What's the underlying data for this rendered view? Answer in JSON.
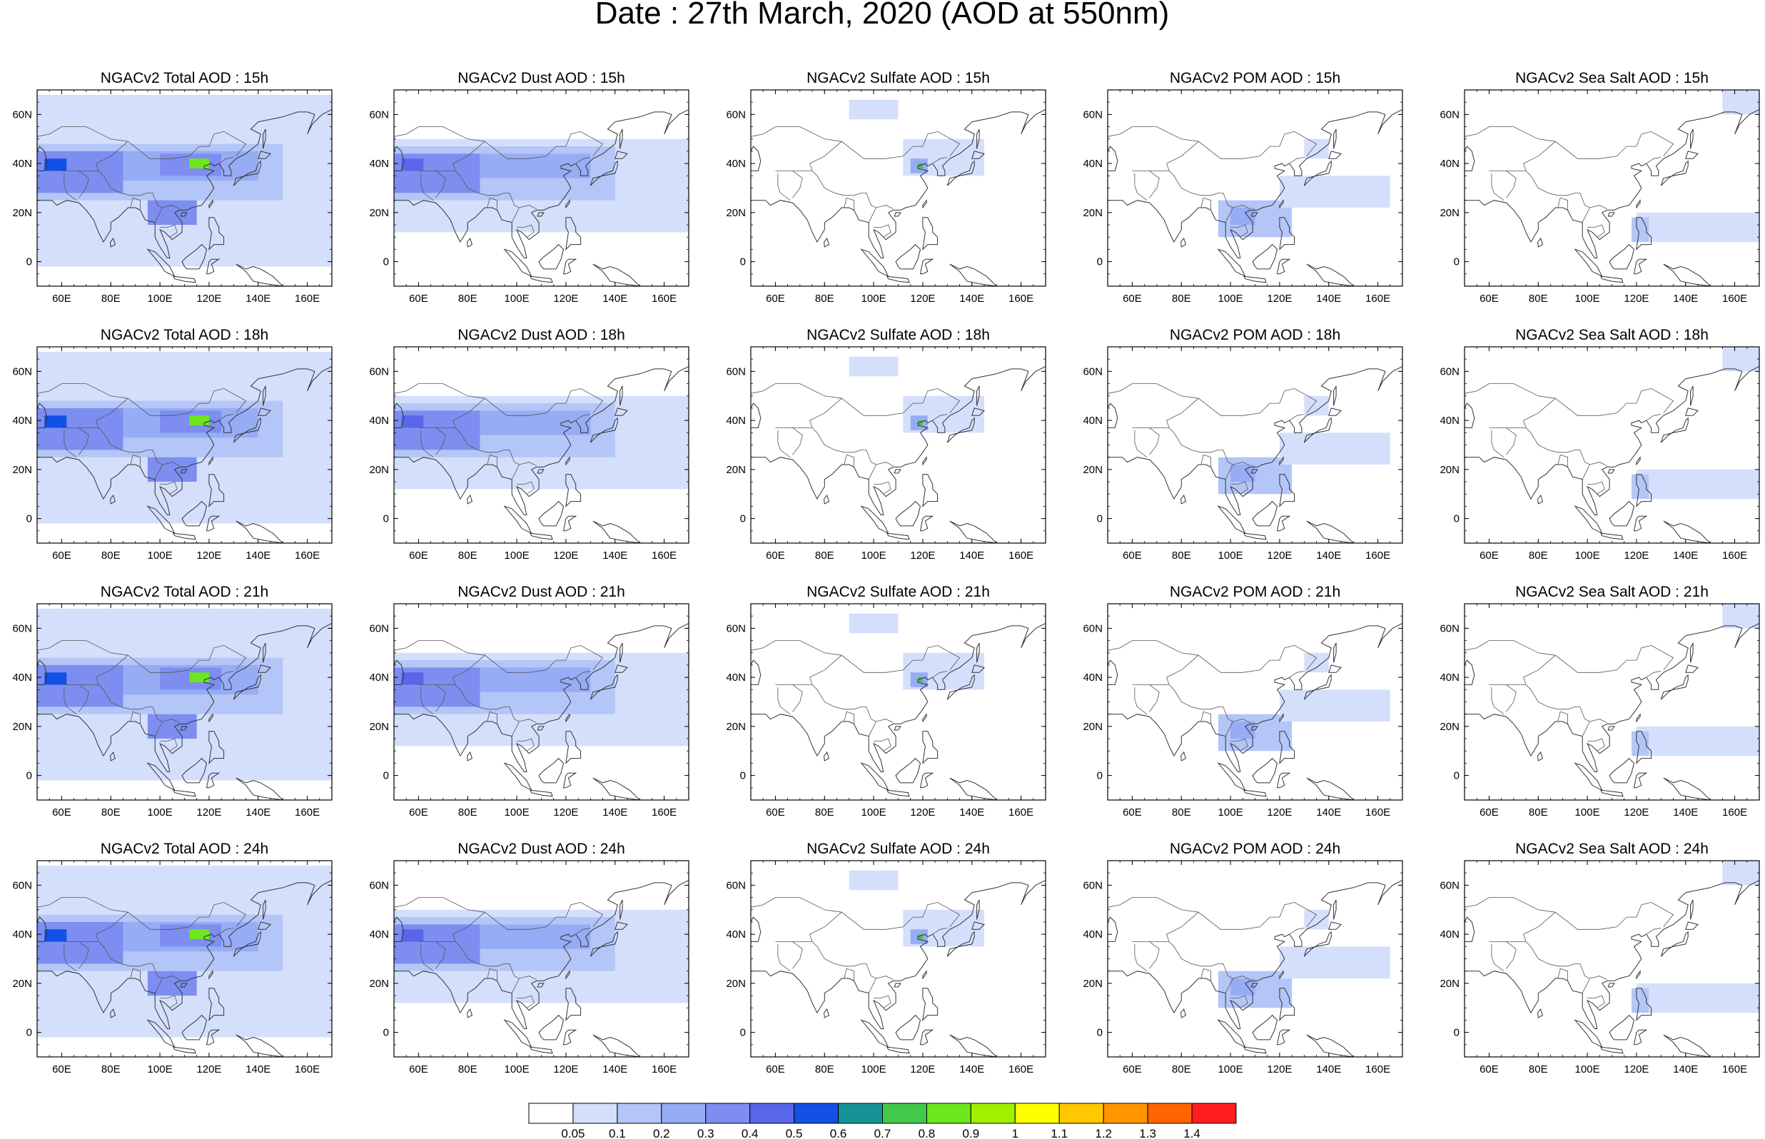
{
  "figure_title": "Date : 27th March, 2020 (AOD at 550nm)",
  "lat_labels": [
    "60N",
    "40N",
    "20N",
    "0"
  ],
  "lon_labels": [
    "60E",
    "80E",
    "100E",
    "120E",
    "140E",
    "160E"
  ],
  "map_extent": {
    "lon": [
      50,
      170
    ],
    "lat": [
      -10,
      70
    ]
  },
  "panels": [
    {
      "title": "NGACv2 Total AOD : 15h",
      "species": "total",
      "hour": 15
    },
    {
      "title": "NGACv2 Dust AOD : 15h",
      "species": "dust",
      "hour": 15
    },
    {
      "title": "NGACv2 Sulfate AOD : 15h",
      "species": "sulfate",
      "hour": 15
    },
    {
      "title": "NGACv2 POM AOD : 15h",
      "species": "pom",
      "hour": 15
    },
    {
      "title": "NGACv2 Sea Salt AOD : 15h",
      "species": "seasalt",
      "hour": 15
    },
    {
      "title": "NGACv2 Total AOD : 18h",
      "species": "total",
      "hour": 18
    },
    {
      "title": "NGACv2 Dust AOD : 18h",
      "species": "dust",
      "hour": 18
    },
    {
      "title": "NGACv2 Sulfate AOD : 18h",
      "species": "sulfate",
      "hour": 18
    },
    {
      "title": "NGACv2 POM AOD : 18h",
      "species": "pom",
      "hour": 18
    },
    {
      "title": "NGACv2 Sea Salt AOD : 18h",
      "species": "seasalt",
      "hour": 18
    },
    {
      "title": "NGACv2 Total AOD : 21h",
      "species": "total",
      "hour": 21
    },
    {
      "title": "NGACv2 Dust AOD : 21h",
      "species": "dust",
      "hour": 21
    },
    {
      "title": "NGACv2 Sulfate AOD : 21h",
      "species": "sulfate",
      "hour": 21
    },
    {
      "title": "NGACv2 POM AOD : 21h",
      "species": "pom",
      "hour": 21
    },
    {
      "title": "NGACv2 Sea Salt AOD : 21h",
      "species": "seasalt",
      "hour": 21
    },
    {
      "title": "NGACv2 Total AOD : 24h",
      "species": "total",
      "hour": 24
    },
    {
      "title": "NGACv2 Dust AOD : 24h",
      "species": "dust",
      "hour": 24
    },
    {
      "title": "NGACv2 Sulfate AOD : 24h",
      "species": "sulfate",
      "hour": 24
    },
    {
      "title": "NGACv2 POM AOD : 24h",
      "species": "pom",
      "hour": 24
    },
    {
      "title": "NGACv2 Sea Salt  AOD : 24h",
      "species": "seasalt",
      "hour": 24
    }
  ],
  "colorbar": {
    "labels": [
      "0.05",
      "0.1",
      "0.2",
      "0.3",
      "0.4",
      "0.5",
      "0.6",
      "0.7",
      "0.8",
      "0.9",
      "1",
      "1.1",
      "1.2",
      "1.3",
      "1.4"
    ],
    "colors": [
      "#ffffff",
      "#d4dffb",
      "#b4c6f7",
      "#96acf5",
      "#7d8ef0",
      "#5a66e8",
      "#1250e6",
      "#169396",
      "#43c94a",
      "#6ee61e",
      "#a0f000",
      "#ffff00",
      "#ffc800",
      "#ff9600",
      "#ff6400",
      "#ff1e1e"
    ]
  },
  "chart_data": {
    "type": "heatmap",
    "xlabel": "",
    "ylabel": "",
    "xlim": [
      50,
      170
    ],
    "ylim": [
      -10,
      70
    ],
    "levels": [
      0.05,
      0.1,
      0.2,
      0.3,
      0.4,
      0.5,
      0.6,
      0.7,
      0.8,
      0.9,
      1,
      1.1,
      1.2,
      1.3,
      1.4
    ],
    "fields": {
      "total": [
        {
          "lon": [
            50,
            170
          ],
          "lat": [
            -2,
            68
          ],
          "aod": 0.07
        },
        {
          "lon": [
            50,
            150
          ],
          "lat": [
            25,
            48
          ],
          "aod": 0.15
        },
        {
          "lon": [
            55,
            140
          ],
          "lat": [
            33,
            45
          ],
          "aod": 0.25
        },
        {
          "lon": [
            50,
            85
          ],
          "lat": [
            28,
            45
          ],
          "aod": 0.35
        },
        {
          "lon": [
            53,
            62
          ],
          "lat": [
            37,
            42
          ],
          "aod": 0.5
        },
        {
          "lon": [
            100,
            125
          ],
          "lat": [
            35,
            44
          ],
          "aod": 0.35
        },
        {
          "lon": [
            112,
            120
          ],
          "lat": [
            38,
            42
          ],
          "aod": 0.8
        },
        {
          "lon": [
            95,
            115
          ],
          "lat": [
            15,
            25
          ],
          "aod": 0.3
        }
      ],
      "dust": [
        {
          "lon": [
            50,
            170
          ],
          "lat": [
            12,
            50
          ],
          "aod": 0.07
        },
        {
          "lon": [
            50,
            140
          ],
          "lat": [
            25,
            47
          ],
          "aod": 0.15
        },
        {
          "lon": [
            55,
            130
          ],
          "lat": [
            34,
            44
          ],
          "aod": 0.25
        },
        {
          "lon": [
            50,
            85
          ],
          "lat": [
            28,
            44
          ],
          "aod": 0.35
        },
        {
          "lon": [
            53,
            62
          ],
          "lat": [
            37,
            42
          ],
          "aod": 0.45
        }
      ],
      "sulfate": [
        {
          "lon": [
            90,
            110
          ],
          "lat": [
            58,
            66
          ],
          "aod": 0.07
        },
        {
          "lon": [
            112,
            145
          ],
          "lat": [
            35,
            50
          ],
          "aod": 0.07
        },
        {
          "lon": [
            115,
            122
          ],
          "lat": [
            36,
            42
          ],
          "aod": 0.2
        },
        {
          "lon": [
            118,
            120
          ],
          "lat": [
            38,
            40
          ],
          "aod": 0.7
        }
      ],
      "pom": [
        {
          "lon": [
            95,
            125
          ],
          "lat": [
            10,
            25
          ],
          "aod": 0.1
        },
        {
          "lon": [
            100,
            110
          ],
          "lat": [
            15,
            22
          ],
          "aod": 0.25
        },
        {
          "lon": [
            120,
            165
          ],
          "lat": [
            22,
            35
          ],
          "aod": 0.07
        },
        {
          "lon": [
            130,
            140
          ],
          "lat": [
            42,
            50
          ],
          "aod": 0.07
        }
      ],
      "seasalt": [
        {
          "lon": [
            120,
            170
          ],
          "lat": [
            8,
            20
          ],
          "aod": 0.07
        },
        {
          "lon": [
            118,
            125
          ],
          "lat": [
            8,
            18
          ],
          "aod": 0.12
        },
        {
          "lon": [
            155,
            170
          ],
          "lat": [
            60,
            70
          ],
          "aod": 0.07
        }
      ]
    }
  }
}
